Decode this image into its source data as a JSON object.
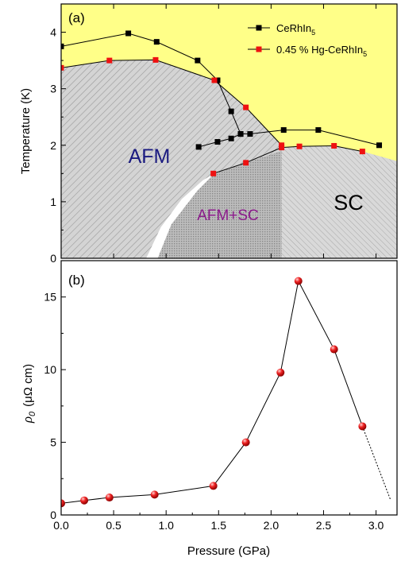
{
  "chart_data": [
    {
      "panel_label": "(a)",
      "type": "line",
      "xlim": [
        0,
        3.2
      ],
      "ylim": [
        0,
        4.5
      ],
      "ylabel": "Temperature (K)",
      "x_ticks": [
        "0.0",
        "0.5",
        "1.0",
        "1.5",
        "2.0",
        "2.5",
        "3.0"
      ],
      "y_ticks": [
        "0",
        "1",
        "2",
        "3",
        "4"
      ],
      "legend_position": "top-right",
      "legend": [
        {
          "base": "CeRhIn",
          "sub": "5",
          "color": "#000000"
        },
        {
          "base": "0.45 % Hg-CeRhIn",
          "sub": "5",
          "color": "#ee1111"
        }
      ],
      "region_labels": {
        "afm": "AFM",
        "afm_sc": "AFM+SC",
        "sc": "SC"
      },
      "region_colors": {
        "paramagnetic": "#ffff88",
        "afm": "#d4d4d4",
        "afm_sc": "#bdbdbd",
        "sc": "#d9d9d9",
        "gap": "#ffffff",
        "afm_label": "#1a1a80",
        "afm_sc_label": "#8b1a8b",
        "sc_label": "#000000"
      },
      "series": [
        {
          "name": "CeRhIn5 T_N",
          "color": "#000000",
          "x": [
            0,
            0.64,
            0.91,
            1.3,
            1.49
          ],
          "y": [
            3.75,
            3.98,
            3.83,
            3.5,
            3.15
          ]
        },
        {
          "name": "CeRhIn5 T_N (cont.)",
          "color": "#000000",
          "x": [
            1.49,
            1.62,
            1.71
          ],
          "y": [
            3.15,
            2.6,
            2.2
          ]
        },
        {
          "name": "CeRhIn5 T_L",
          "color": "#000000",
          "x": [
            1.31,
            1.49,
            1.62,
            1.71
          ],
          "y": [
            1.97,
            2.06,
            2.12,
            2.2
          ]
        },
        {
          "name": "CeRhIn5 T_c",
          "color": "#000000",
          "x": [
            1.71,
            1.8,
            2.12,
            2.45,
            3.03
          ],
          "y": [
            2.2,
            2.2,
            2.27,
            2.27,
            2.0
          ]
        },
        {
          "name": "0.45 % Hg-CeRhIn5 T_N",
          "color": "#ee1111",
          "x": [
            0,
            0.46,
            0.9,
            1.46,
            1.76,
            2.1
          ],
          "y": [
            3.37,
            3.5,
            3.51,
            3.15,
            2.67,
            2.0
          ]
        },
        {
          "name": "0.45 % Hg-CeRhIn5 T_c",
          "color": "#ee1111",
          "x": [
            1.45,
            1.76,
            2.1,
            2.27,
            2.6,
            2.87
          ],
          "y": [
            1.5,
            1.69,
            1.96,
            1.98,
            1.99,
            1.89
          ]
        }
      ],
      "boundaries": {
        "afm_top": {
          "x": [
            0,
            0.46,
            0.9,
            1.46,
            1.76,
            2.1
          ],
          "y": [
            3.37,
            3.5,
            3.51,
            3.15,
            2.67,
            2.0
          ]
        },
        "sc_dome": {
          "x": [
            2.1,
            2.27,
            2.6,
            2.87,
            3.2
          ],
          "y": [
            1.96,
            1.98,
            1.99,
            1.89,
            1.72
          ]
        },
        "afm_sc_edge": {
          "x": [
            0.92,
            1.05,
            1.3,
            1.46,
            1.76,
            2.1
          ],
          "y": [
            0,
            0.6,
            1.2,
            1.5,
            1.69,
            1.9
          ]
        },
        "white_gap_edge": {
          "x": [
            0.81,
            0.95,
            1.15,
            1.35,
            1.46
          ],
          "y": [
            0,
            0.55,
            1.05,
            1.38,
            1.5
          ]
        },
        "sc_left": 2.1
      }
    },
    {
      "panel_label": "(b)",
      "type": "line",
      "xlim": [
        0,
        3.2
      ],
      "ylim": [
        0,
        17.5
      ],
      "xlabel": "Pressure (GPa)",
      "ylabel_symbol": "ρ",
      "ylabel_sub": "0",
      "ylabel_unit": "(μΩ cm)",
      "x_ticks": [
        "0.0",
        "0.5",
        "1.0",
        "1.5",
        "2.0",
        "2.5",
        "3.0"
      ],
      "y_ticks": [
        "0",
        "5",
        "10",
        "15"
      ],
      "series": [
        {
          "name": "rho0",
          "color": "#ee1111",
          "x": [
            0,
            0.22,
            0.46,
            0.89,
            1.45,
            1.76,
            2.09,
            2.26,
            2.6,
            2.87
          ],
          "y": [
            0.8,
            1.0,
            1.2,
            1.4,
            2.0,
            5.0,
            9.8,
            16.1,
            11.4,
            6.1
          ]
        }
      ],
      "extrapolation": {
        "x": [
          2.87,
          3.14
        ],
        "y": [
          6.1,
          1.0
        ]
      }
    }
  ]
}
